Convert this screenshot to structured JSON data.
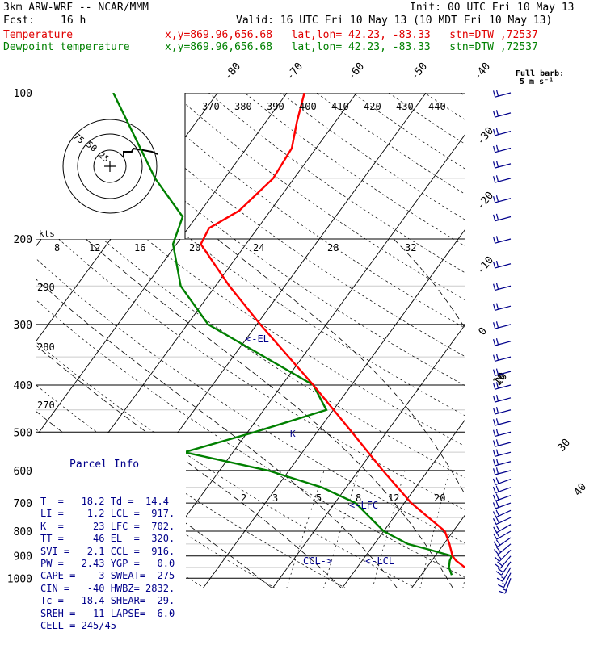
{
  "header": {
    "model": "3km ARW-WRF -- NCAR/MMM",
    "init": "Init: 00 UTC Fri 10 May 13",
    "fcst_label": "Fcst:",
    "fcst_value": "16 h",
    "valid": "Valid: 16 UTC Fri 10 May 13 (10 MDT Fri 10 May 13)",
    "temp_label": "Temperature",
    "dew_label": "Dewpoint temperature",
    "loc": "x,y=869.96,656.68   lat,lon= 42.23, -83.33   stn=DTW ,72537"
  },
  "barb_legend": {
    "line1": "Full barb:",
    "line2": "5 m s⁻¹"
  },
  "hodograph": {
    "unit": "kts",
    "ring_labels": [
      "75",
      "50",
      "25"
    ]
  },
  "parcel_info": {
    "title": "Parcel Info",
    "rows": [
      "T  =   18.2 Td =  14.4",
      "LI =    1.2 LCL =  917.",
      "K  =     23 LFC =  702.",
      "TT =     46 EL  =  320.",
      "SVI =   2.1 CCL =  916.",
      "PW =   2.43 YGP =   0.0",
      "CAPE =    3 SWEAT=  275",
      "CIN =   -40 HWBZ= 2832.",
      "Tc =   18.4 SHEAR=  29.",
      "SREH =   11 LAPSE=  6.0",
      "CELL = 245/45"
    ]
  },
  "level_labels": {
    "el": "<-EL",
    "lfc": "<-LFC",
    "lcl": "<-LCL",
    "ccl": "CCL->",
    "k": "K"
  },
  "chart_data": {
    "type": "line",
    "title": "",
    "ylabel": "",
    "pressure_ticks": [
      100,
      200,
      300,
      400,
      500,
      600,
      700,
      800,
      900,
      1000
    ],
    "isotherm_labels": [
      "-80",
      "-70",
      "-60",
      "-50",
      "-40",
      "-30",
      "-20",
      "-10",
      "0",
      "10",
      "20",
      "30",
      "40"
    ],
    "theta_labels": [
      "370",
      "380",
      "390",
      "400",
      "410",
      "420",
      "430",
      "440"
    ],
    "mixing_ratio_labels": [
      "2",
      "3",
      "5",
      "8",
      "12",
      "20"
    ],
    "thetae_labels": [
      "8",
      "12",
      "16",
      "20",
      "24",
      "28",
      "32"
    ],
    "left_labels": [
      "290",
      "280",
      "270"
    ],
    "colors": {
      "temperature": "#ff0000",
      "dewpoint": "#008000",
      "barbs": "#00008b",
      "labels": "#00008b"
    },
    "series": [
      {
        "name": "Temperature",
        "points": [
          {
            "p": 985,
            "t": 18.2
          },
          {
            "p": 950,
            "t": 15.5
          },
          {
            "p": 920,
            "t": 13.5
          },
          {
            "p": 900,
            "t": 12.5
          },
          {
            "p": 850,
            "t": 10.8
          },
          {
            "p": 800,
            "t": 8.8
          },
          {
            "p": 700,
            "t": 1.0
          },
          {
            "p": 600,
            "t": -6.5
          },
          {
            "p": 500,
            "t": -15.0
          },
          {
            "p": 400,
            "t": -25.5
          },
          {
            "p": 300,
            "t": -39.5
          },
          {
            "p": 250,
            "t": -48.0
          },
          {
            "p": 205,
            "t": -56.5
          },
          {
            "p": 190,
            "t": -57.0
          },
          {
            "p": 175,
            "t": -54.5
          },
          {
            "p": 150,
            "t": -53.0
          },
          {
            "p": 130,
            "t": -53.5
          },
          {
            "p": 115,
            "t": -55.5
          },
          {
            "p": 100,
            "t": -57.5
          }
        ]
      },
      {
        "name": "Dewpoint temperature",
        "points": [
          {
            "p": 985,
            "t": 14.4
          },
          {
            "p": 950,
            "t": 13.2
          },
          {
            "p": 920,
            "t": 12.6
          },
          {
            "p": 900,
            "t": 12.4
          },
          {
            "p": 870,
            "t": 8.0
          },
          {
            "p": 850,
            "t": 4.8
          },
          {
            "p": 800,
            "t": 0.0
          },
          {
            "p": 700,
            "t": -7.0
          },
          {
            "p": 650,
            "t": -13.5
          },
          {
            "p": 600,
            "t": -23.0
          },
          {
            "p": 550,
            "t": -37.0
          },
          {
            "p": 500,
            "t": -29.0
          },
          {
            "p": 450,
            "t": -21.0
          },
          {
            "p": 400,
            "t": -25.5
          },
          {
            "p": 300,
            "t": -47.0
          },
          {
            "p": 250,
            "t": -55.0
          },
          {
            "p": 205,
            "t": -60.5
          },
          {
            "p": 180,
            "t": -62.0
          },
          {
            "p": 150,
            "t": -70.0
          },
          {
            "p": 100,
            "t": -85.0
          }
        ]
      }
    ],
    "winds": [
      {
        "p": 1000,
        "spd": 13,
        "dir": 200
      },
      {
        "p": 975,
        "spd": 15,
        "dir": 205
      },
      {
        "p": 950,
        "spd": 17,
        "dir": 210
      },
      {
        "p": 925,
        "spd": 20,
        "dir": 215
      },
      {
        "p": 900,
        "spd": 22,
        "dir": 220
      },
      {
        "p": 875,
        "spd": 22,
        "dir": 225
      },
      {
        "p": 850,
        "spd": 22,
        "dir": 230
      },
      {
        "p": 825,
        "spd": 22,
        "dir": 235
      },
      {
        "p": 800,
        "spd": 22,
        "dir": 240
      },
      {
        "p": 775,
        "spd": 22,
        "dir": 240
      },
      {
        "p": 750,
        "spd": 22,
        "dir": 245
      },
      {
        "p": 725,
        "spd": 22,
        "dir": 245
      },
      {
        "p": 700,
        "spd": 22,
        "dir": 250
      },
      {
        "p": 675,
        "spd": 22,
        "dir": 250
      },
      {
        "p": 650,
        "spd": 22,
        "dir": 250
      },
      {
        "p": 625,
        "spd": 22,
        "dir": 250
      },
      {
        "p": 600,
        "spd": 22,
        "dir": 255
      },
      {
        "p": 575,
        "spd": 22,
        "dir": 255
      },
      {
        "p": 550,
        "spd": 22,
        "dir": 255
      },
      {
        "p": 525,
        "spd": 22,
        "dir": 255
      },
      {
        "p": 500,
        "spd": 22,
        "dir": 255
      },
      {
        "p": 475,
        "spd": 22,
        "dir": 255
      },
      {
        "p": 450,
        "spd": 22,
        "dir": 255
      },
      {
        "p": 425,
        "spd": 22,
        "dir": 255
      },
      {
        "p": 400,
        "spd": 22,
        "dir": 255
      },
      {
        "p": 375,
        "spd": 22,
        "dir": 255
      },
      {
        "p": 350,
        "spd": 22,
        "dir": 255
      },
      {
        "p": 325,
        "spd": 22,
        "dir": 255
      },
      {
        "p": 300,
        "spd": 22,
        "dir": 255
      },
      {
        "p": 275,
        "spd": 22,
        "dir": 255
      },
      {
        "p": 250,
        "spd": 22,
        "dir": 255
      },
      {
        "p": 225,
        "spd": 22,
        "dir": 255
      },
      {
        "p": 200,
        "spd": 22,
        "dir": 255
      },
      {
        "p": 180,
        "spd": 22,
        "dir": 255
      },
      {
        "p": 165,
        "spd": 22,
        "dir": 255
      },
      {
        "p": 150,
        "spd": 22,
        "dir": 255
      },
      {
        "p": 140,
        "spd": 22,
        "dir": 255
      },
      {
        "p": 130,
        "spd": 22,
        "dir": 255
      },
      {
        "p": 120,
        "spd": 22,
        "dir": 255
      },
      {
        "p": 110,
        "spd": 22,
        "dir": 255
      },
      {
        "p": 100,
        "spd": 22,
        "dir": 255
      }
    ]
  }
}
